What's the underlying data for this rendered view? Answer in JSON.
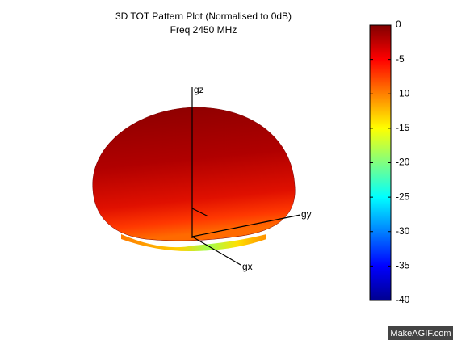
{
  "chart_data": {
    "type": "surface3d",
    "title": "3D TOT Pattern Plot (Normalised to 0dB)",
    "subtitle": "Freq 2450 MHz",
    "axis_labels": {
      "x": "gx",
      "y": "gy",
      "z": "gz"
    },
    "colormap": "jet",
    "clim": [
      -40,
      0
    ],
    "cticks": [
      0,
      -5,
      -10,
      -15,
      -20,
      -25,
      -30,
      -35,
      -40
    ]
  },
  "watermark": "MakeAGIF.com"
}
